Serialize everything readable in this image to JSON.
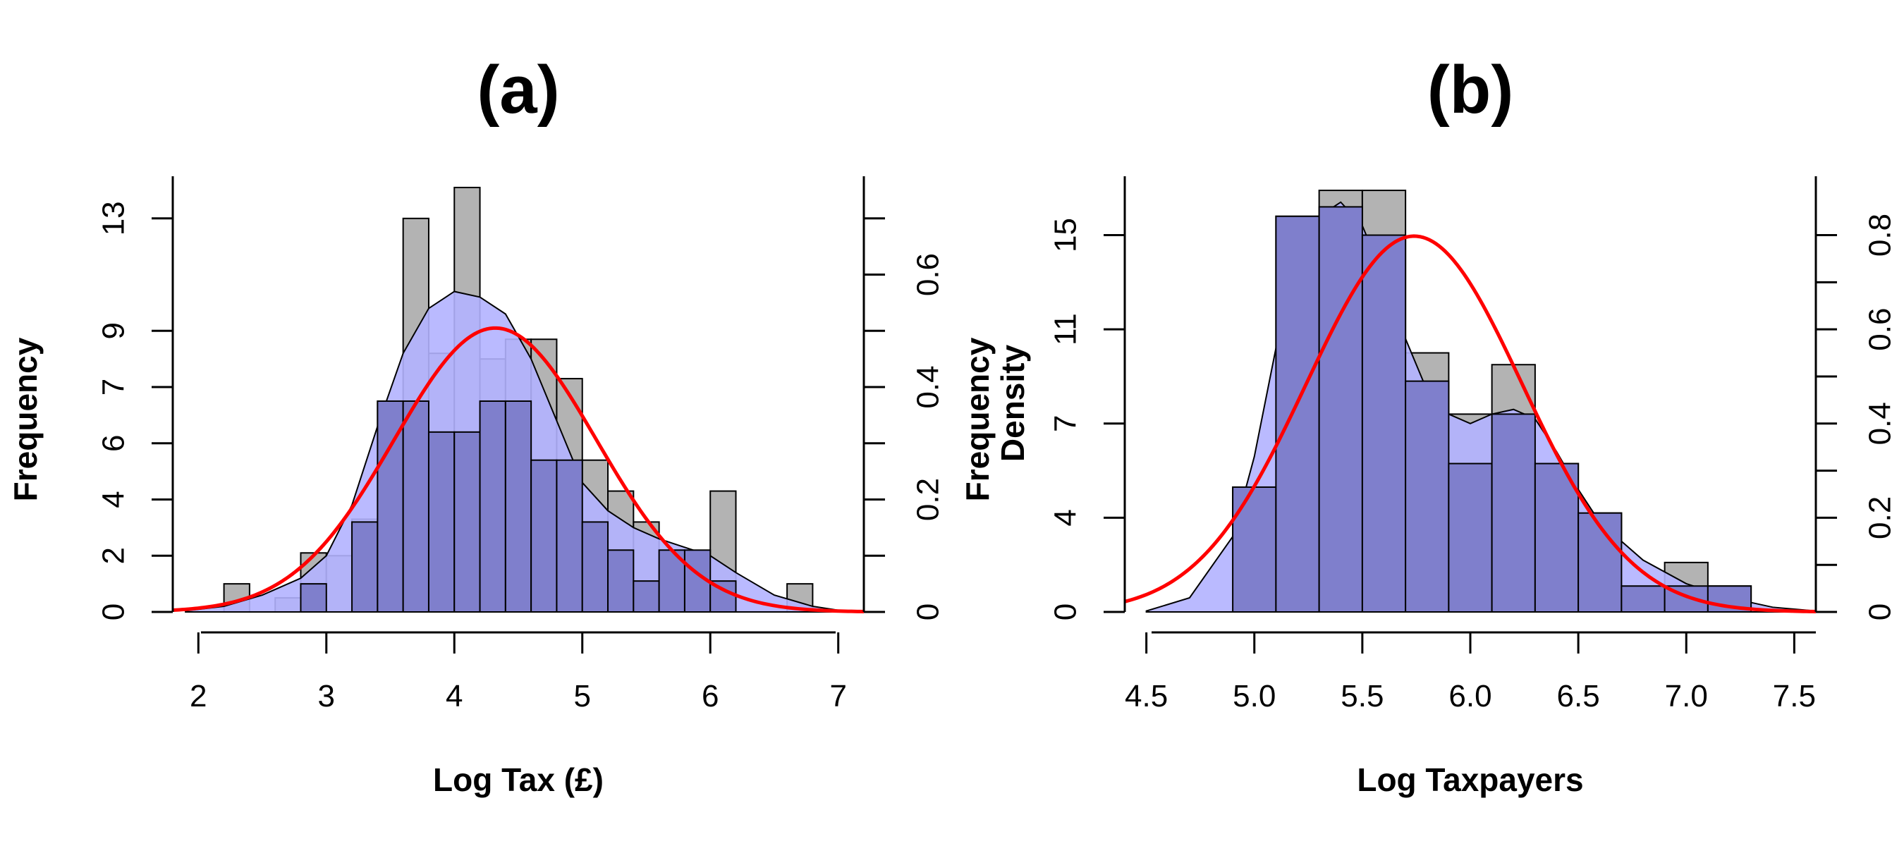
{
  "chart_data": [
    {
      "type": "histogram",
      "title": "(a)",
      "xlabel": "Log Tax (£)",
      "ylabel_left": "Frequency",
      "ylabel_right": "",
      "xlim": [
        1.8,
        7.2
      ],
      "ylim_left": [
        0,
        15.5
      ],
      "ylim_right": [
        0,
        0.775
      ],
      "x_ticks": [
        2,
        3,
        4,
        5,
        6,
        7
      ],
      "y_left_ticks": [
        0,
        2,
        4,
        6,
        7,
        9,
        13
      ],
      "y_left_tick_positions": [
        0,
        2,
        4,
        6,
        8,
        10,
        14
      ],
      "y_right_ticks": [
        0,
        0.2,
        0.4,
        0.6
      ],
      "y_right_minor_ticks": [
        0.1,
        0.3,
        0.5,
        0.7
      ],
      "grey_histogram": {
        "color": "#b3b3b3",
        "bin_edges": [
          2.2,
          2.4,
          2.6,
          2.8,
          3.0,
          3.2,
          3.4,
          3.6,
          3.8,
          4.0,
          4.2,
          4.4,
          4.6,
          4.8,
          5.0,
          5.2,
          5.4,
          5.6,
          5.8,
          6.0,
          6.2,
          6.4,
          6.6,
          6.8
        ],
        "heights": [
          1,
          0,
          0.5,
          2.1,
          2.0,
          3.3,
          7.5,
          14.0,
          9.2,
          15.1,
          9.0,
          9.7,
          9.7,
          8.3,
          5.4,
          4.3,
          3.2,
          2.2,
          1.8,
          4.3,
          0,
          0,
          1,
          0
        ]
      },
      "blue_histogram": {
        "color": "#7f7fcc",
        "bin_edges": [
          2.2,
          2.4,
          2.6,
          2.8,
          3.0,
          3.2,
          3.4,
          3.6,
          3.8,
          4.0,
          4.2,
          4.4,
          4.6,
          4.8,
          5.0,
          5.2,
          5.4,
          5.6,
          5.8,
          6.0,
          6.2,
          6.4,
          6.6,
          6.8
        ],
        "heights": [
          0,
          0,
          0,
          1,
          0,
          3.2,
          7.5,
          7.5,
          6.4,
          6.4,
          7.5,
          7.5,
          5.4,
          5.4,
          3.2,
          2.2,
          1.1,
          2.2,
          2.2,
          1.1,
          0,
          0,
          0,
          0
        ]
      },
      "kde_density": {
        "fill": "#b3b3ff",
        "x": [
          1.9,
          2.2,
          2.5,
          2.8,
          3.0,
          3.2,
          3.4,
          3.6,
          3.8,
          4.0,
          4.2,
          4.4,
          4.6,
          4.8,
          5.0,
          5.2,
          5.4,
          5.6,
          5.8,
          6.0,
          6.2,
          6.5,
          6.8,
          7.0
        ],
        "y": [
          0.002,
          0.01,
          0.03,
          0.06,
          0.1,
          0.19,
          0.33,
          0.46,
          0.54,
          0.57,
          0.56,
          0.53,
          0.45,
          0.34,
          0.23,
          0.18,
          0.15,
          0.13,
          0.115,
          0.1,
          0.07,
          0.03,
          0.01,
          0.003
        ]
      },
      "normal_density": {
        "color": "#ff0000",
        "mean": 4.32,
        "sd": 0.79
      }
    },
    {
      "type": "histogram",
      "title": "(b)",
      "xlabel": "Log Taxpayers",
      "ylabel_left": "Frequency\nDensity",
      "ylabel_right": "",
      "xlim": [
        4.4,
        7.6
      ],
      "ylim_left": [
        0,
        18.5
      ],
      "ylim_right": [
        0,
        0.925
      ],
      "x_ticks": [
        4.5,
        5.0,
        5.5,
        6.0,
        6.5,
        7.0,
        7.5
      ],
      "y_left_ticks": [
        0,
        4,
        7,
        11,
        15
      ],
      "y_left_tick_positions": [
        0,
        4,
        8,
        12,
        16
      ],
      "y_right_ticks": [
        0,
        0.2,
        0.4,
        0.6,
        0.8
      ],
      "y_right_minor_ticks": [
        0.1,
        0.3,
        0.5,
        0.7
      ],
      "grey_histogram": {
        "color": "#b3b3b3",
        "bin_edges": [
          4.9,
          5.1,
          5.3,
          5.5,
          5.7,
          5.9,
          6.1,
          6.3,
          6.5,
          6.7,
          6.9,
          7.1,
          7.3
        ],
        "heights": [
          5.3,
          16.8,
          17.9,
          17.9,
          11.0,
          8.4,
          10.5,
          6.3,
          4.2,
          1.1,
          2.1,
          1.1
        ]
      },
      "blue_histogram": {
        "color": "#7f7fcc",
        "bin_edges": [
          4.9,
          5.1,
          5.3,
          5.5,
          5.7,
          5.9,
          6.1,
          6.3,
          6.5,
          6.7,
          6.9,
          7.1,
          7.3
        ],
        "heights": [
          5.3,
          16.8,
          17.2,
          16.0,
          9.8,
          6.3,
          8.4,
          6.3,
          4.2,
          1.1,
          1.1,
          1.1
        ]
      },
      "kde_density": {
        "fill": "#b3b3ff",
        "x": [
          4.5,
          4.7,
          4.9,
          5.0,
          5.1,
          5.2,
          5.3,
          5.4,
          5.5,
          5.6,
          5.7,
          5.8,
          5.9,
          6.0,
          6.1,
          6.2,
          6.3,
          6.4,
          6.5,
          6.6,
          6.8,
          7.0,
          7.2,
          7.4,
          7.6
        ],
        "y": [
          0.002,
          0.03,
          0.16,
          0.33,
          0.56,
          0.74,
          0.84,
          0.87,
          0.82,
          0.71,
          0.58,
          0.47,
          0.42,
          0.4,
          0.42,
          0.43,
          0.41,
          0.34,
          0.26,
          0.19,
          0.11,
          0.06,
          0.03,
          0.01,
          0.002
        ]
      },
      "normal_density": {
        "color": "#ff0000",
        "mean": 5.74,
        "sd": 0.5
      }
    }
  ]
}
